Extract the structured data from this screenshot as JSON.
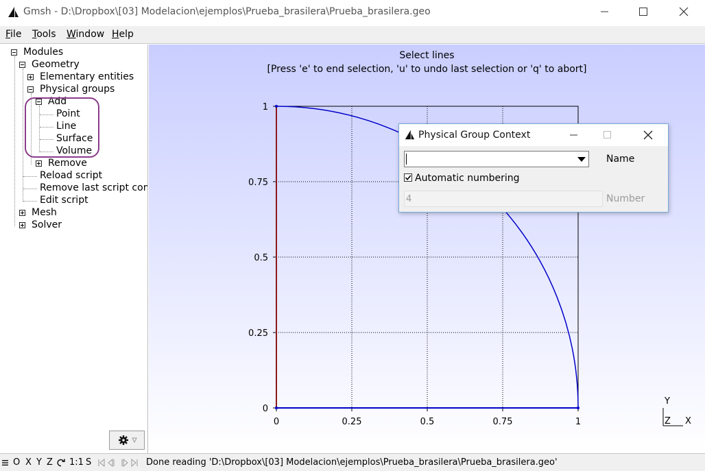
{
  "window": {
    "title": "Gmsh - D:\\Dropbox\\[03] Modelacion\\ejemplos\\Prueba_brasilera\\Prueba_brasilera.geo"
  },
  "menu": {
    "items": [
      {
        "label": "File",
        "underline": "F",
        "rest": "ile"
      },
      {
        "label": "Tools",
        "underline": "T",
        "rest": "ools"
      },
      {
        "label": "Window",
        "underline": "W",
        "rest": "indow"
      },
      {
        "label": "Help",
        "underline": "H",
        "rest": "elp"
      }
    ]
  },
  "tree": {
    "modules": "Modules",
    "geometry": "Geometry",
    "elementary_entities": "Elementary entities",
    "physical_groups": "Physical groups",
    "add": "Add",
    "point": "Point",
    "line": "Line",
    "surface": "Surface",
    "volume": "Volume",
    "remove": "Remove",
    "reload_script": "Reload script",
    "remove_last_script_command": "Remove last script com",
    "edit_script": "Edit script",
    "mesh": "Mesh",
    "solver": "Solver"
  },
  "graphics": {
    "prompt_line1": "Select lines",
    "prompt_line2": "[Press 'e' to end selection, 'u' to undo last selection or 'q' to abort]",
    "axes": {
      "x_ticks": [
        "0",
        "0.25",
        "0.5",
        "0.75",
        "1"
      ],
      "y_ticks": [
        "0",
        "0.25",
        "0.5",
        "0.75",
        "1"
      ]
    },
    "geometry": {
      "x_range": [
        0,
        1
      ],
      "y_range": [
        0,
        1
      ],
      "arc_radius": 1,
      "colors": {
        "curve": "#0000c8",
        "selected_line": "#8b1a1a",
        "frame": "#000000",
        "grid": "#000000"
      }
    },
    "triad": {
      "y": "Y",
      "z": "Z",
      "x": "X"
    }
  },
  "dialog": {
    "title": "Physical Group Context",
    "name_label": "Name",
    "name_value": "",
    "automatic_numbering_label": "Automatic numbering",
    "automatic_numbering_checked": true,
    "number_value": "4",
    "number_label": "Number"
  },
  "statusbar": {
    "o": "O",
    "x": "X",
    "y": "Y",
    "z": "Z",
    "scale": "1:1",
    "s": "S",
    "message": "Done reading 'D:\\Dropbox\\[03] Modelacion\\ejemplos\\Prueba_brasilera\\Prueba_brasilera.geo'"
  }
}
